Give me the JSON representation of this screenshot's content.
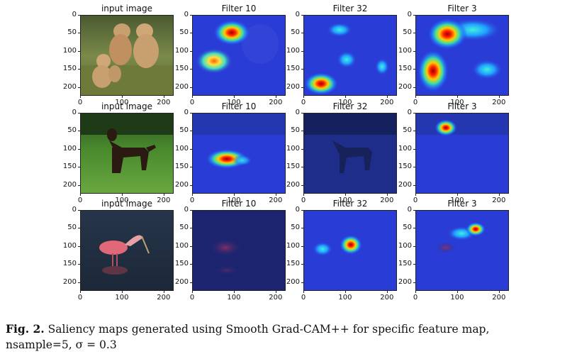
{
  "panel_titles": {
    "r0": [
      "input image",
      "Filter 10",
      "Filter 32",
      "Filter 3"
    ],
    "r1": [
      "input image",
      "Filter 10",
      "Filter 32",
      "Filter 3"
    ],
    "r2": [
      "input image",
      "Filter 10",
      "Filter 32",
      "Filter 3"
    ]
  },
  "y_ticks": [
    "0",
    "50",
    "100",
    "150",
    "200"
  ],
  "x_ticks": [
    "0",
    "100",
    "200"
  ],
  "caption": {
    "label": "Fig. 2.",
    "text": "Saliency maps generated using Smooth Grad-CAM++ for specific feature map,",
    "line2": "nsample=5, σ = 0.3"
  },
  "colors": {
    "jet_blue": "#2a3cd6",
    "jet_red": "#d42010",
    "jet_yellow": "#f0e020"
  }
}
